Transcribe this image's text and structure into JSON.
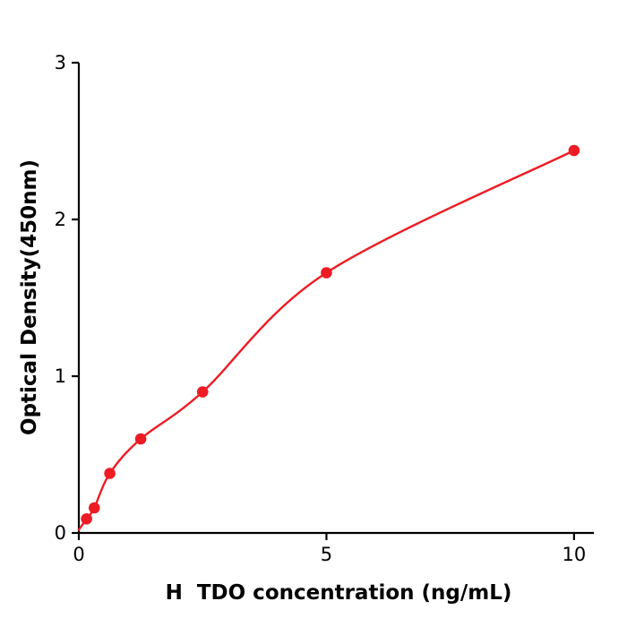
{
  "chart_data": {
    "type": "scatter",
    "title": "",
    "xlabel": "H  TDO concentration (ng/mL)",
    "ylabel": "Optical Density(450nm)",
    "x": [
      0.156,
      0.3125,
      0.625,
      1.25,
      2.5,
      5,
      10
    ],
    "y": [
      0.09,
      0.16,
      0.38,
      0.6,
      0.9,
      1.66,
      2.44
    ],
    "curve_start": [
      0,
      0.02
    ],
    "xlim": [
      0,
      10.4
    ],
    "ylim": [
      0,
      3
    ],
    "xticks": [
      0,
      5,
      10
    ],
    "yticks": [
      0,
      1,
      2,
      3
    ],
    "grid": false,
    "legend_position": "none",
    "point_color": "#ed1c24",
    "line_color": "#ed1c24",
    "axis_color": "#000000",
    "background_color": "#ffffff"
  }
}
